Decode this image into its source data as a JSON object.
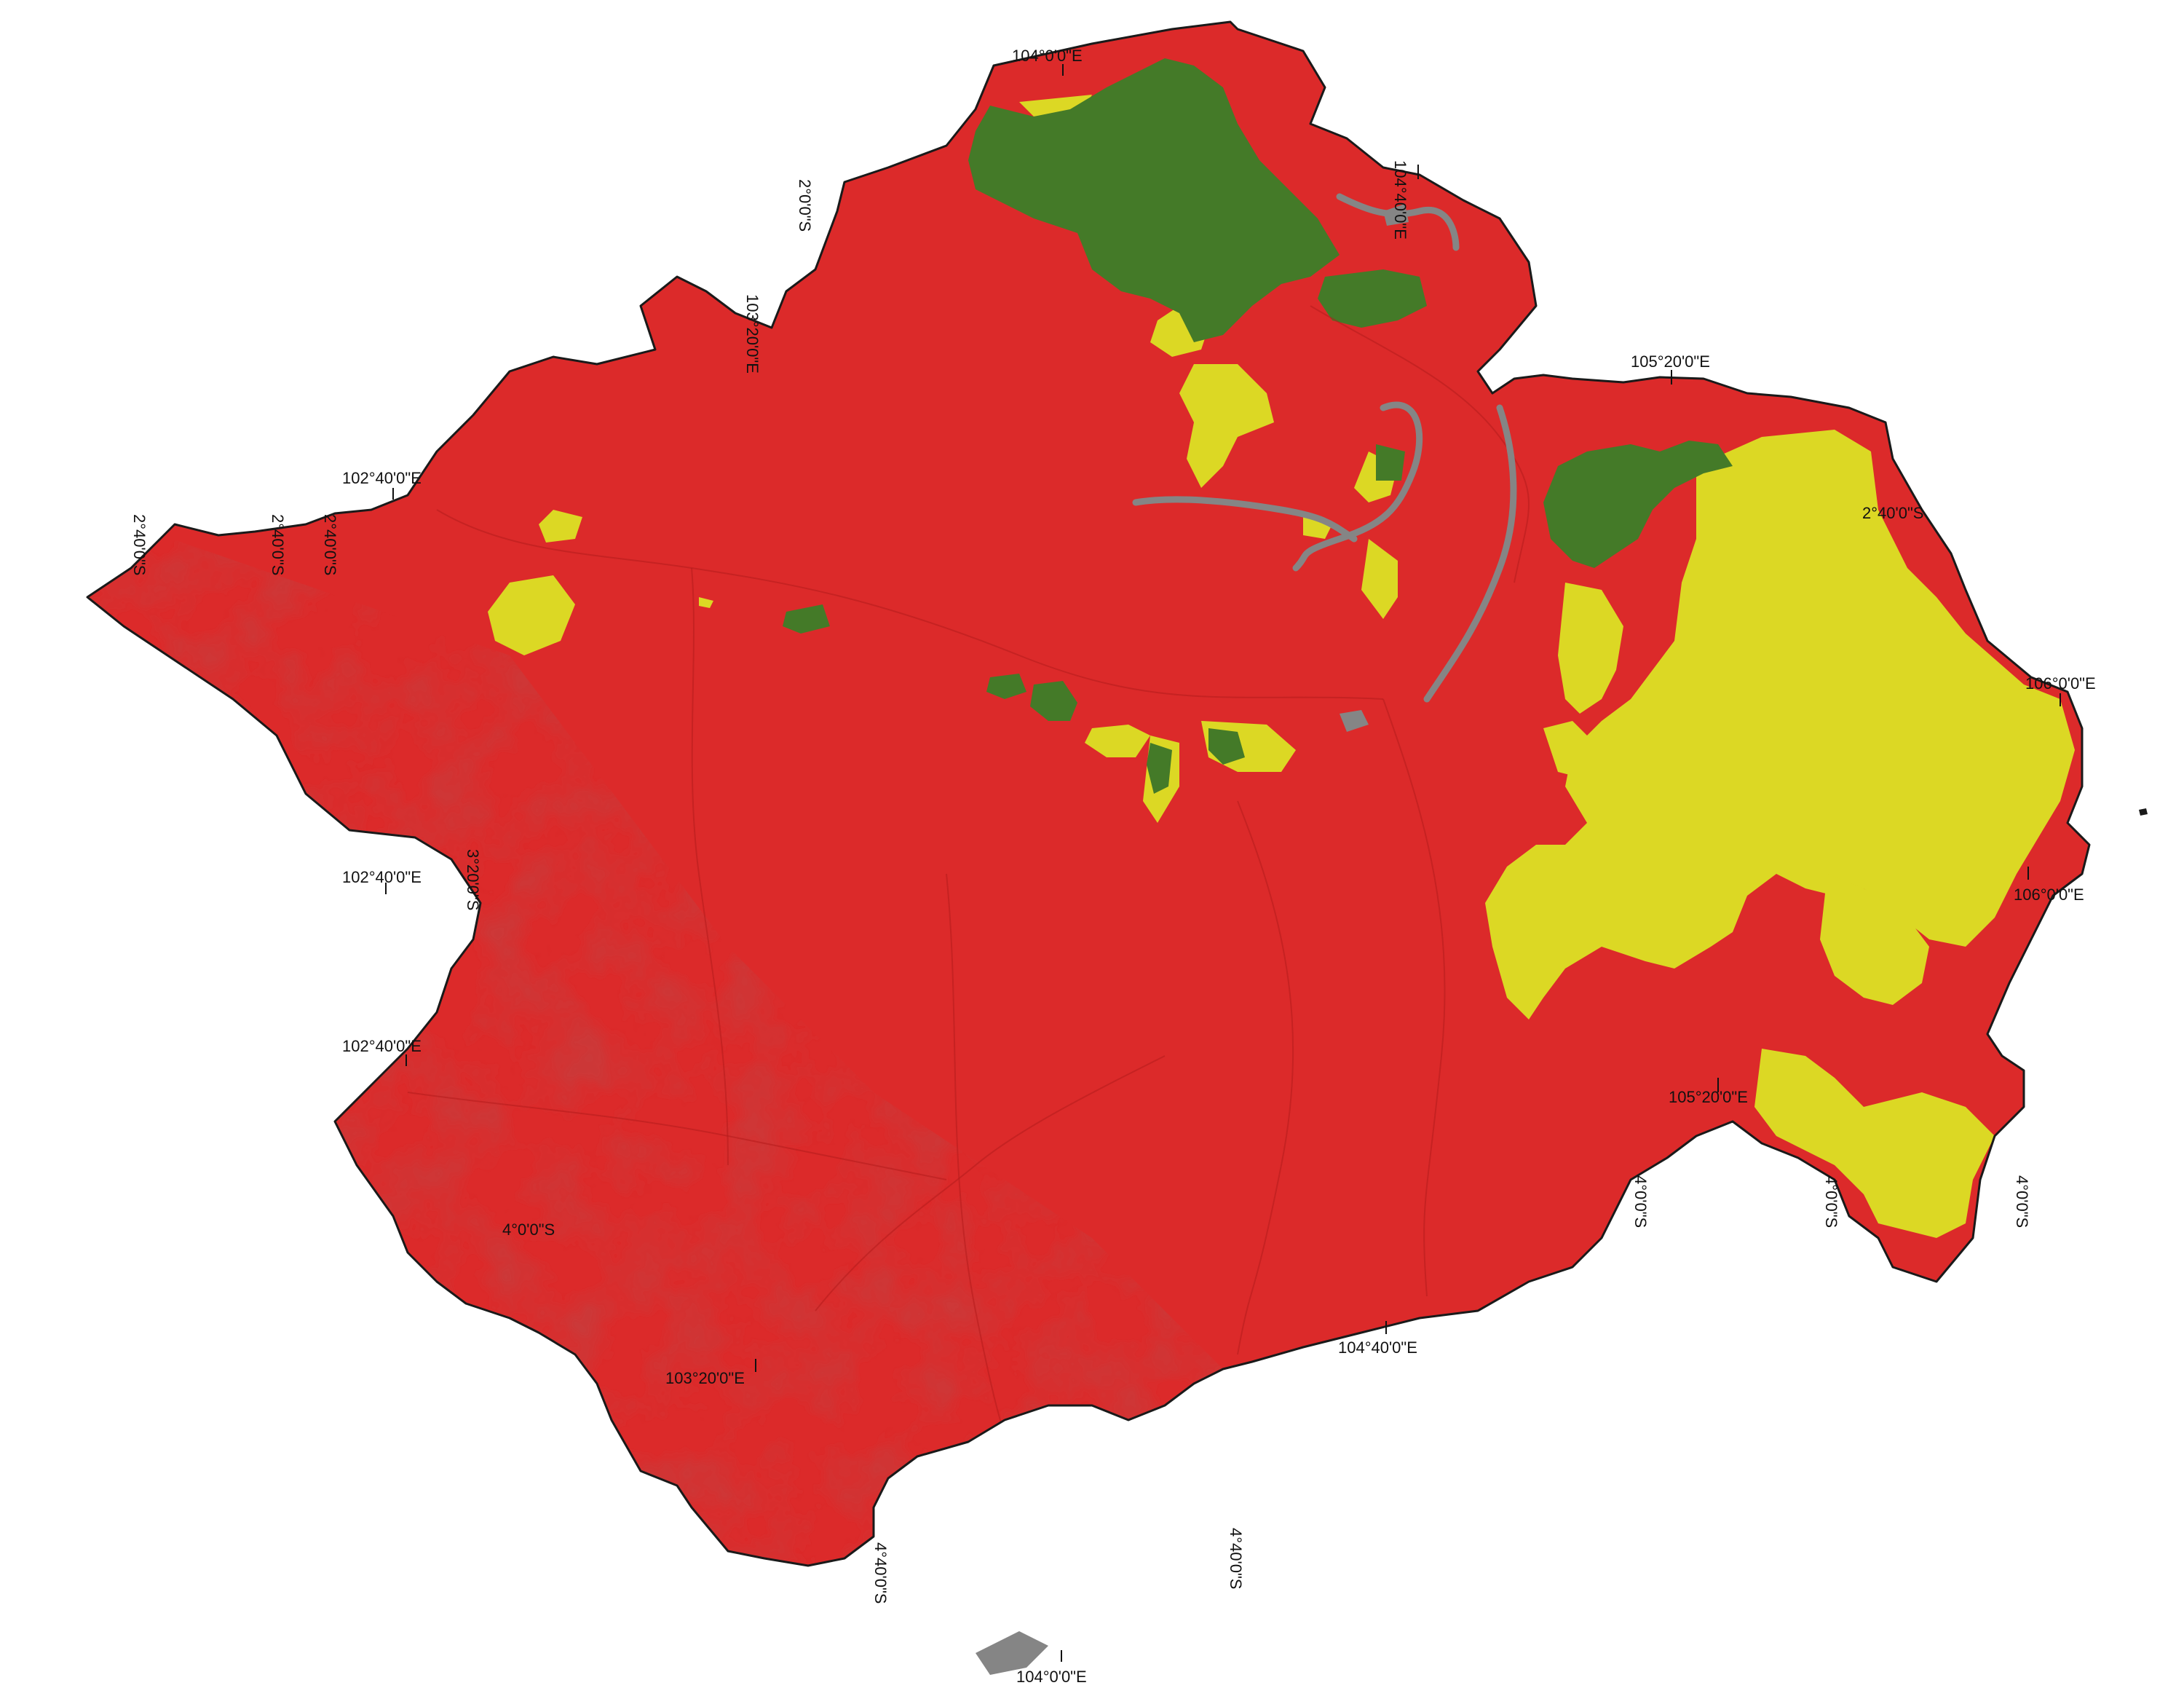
{
  "map": {
    "colors": {
      "class_red": "#dc2a2a",
      "class_yellow": "#dcd824",
      "class_green": "#447a28",
      "water": "#858585",
      "relief_shadow": "#9e1414",
      "boundary": "#1a1a1a",
      "graticule_label": "#111111"
    },
    "graticule_labels": {
      "top_lon_1": "104°0'0\"E",
      "top_lon_2": "104°40'0\"E",
      "top_lon_3": "105°20'0\"E",
      "top_lat_1": "2°0'0\"S",
      "top_lat_2": "103°20'0\"E",
      "left_lon_1": "102°40'0\"E",
      "left_lat_1": "2°40'0\"S",
      "left_lat_2": "2°40'0\"S",
      "left_lat_3": "2°40'0\"S",
      "left_lon_2": "102°40'0\"E",
      "left_lat_4": "3°20'0\"S",
      "left_lon_3": "102°40'0\"E",
      "left_lat_5": "4°0'0\"S",
      "bottom_lon_1": "103°20'0\"E",
      "bottom_lat_1": "4°40'0\"S",
      "bottom_lat_2": "4°40'0\"S",
      "bottom_lon_2": "104°0'0\"E",
      "bottom_lon_3": "104°40'0\"E",
      "right_lat_1": "2°40'0\"S",
      "right_lon_1": "106°0'0\"E",
      "right_lon_2": "106°0'0\"E",
      "right_lon_3": "105°20'0\"E",
      "right_lat_2": "4°0'0\"S",
      "right_lat_3": "4°0'0\"S",
      "right_lat_4": "4°0'0\"S"
    }
  }
}
